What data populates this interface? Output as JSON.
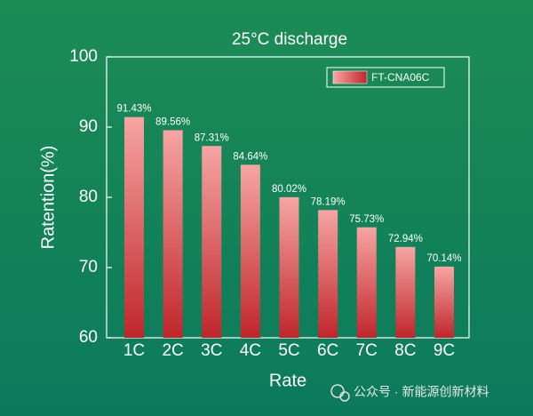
{
  "chart_data": {
    "type": "bar",
    "title": "25°C discharge",
    "xlabel": "Rate",
    "ylabel": "Ratention(%)",
    "categories": [
      "1C",
      "2C",
      "3C",
      "4C",
      "5C",
      "6C",
      "7C",
      "8C",
      "9C"
    ],
    "series": [
      {
        "name": "FT-CNA06C",
        "color": "#c0262b",
        "values": [
          91.43,
          89.56,
          87.31,
          84.64,
          80.02,
          78.19,
          75.73,
          72.94,
          70.14
        ],
        "value_labels": [
          "91.43%",
          "89.56%",
          "87.31%",
          "84.64%",
          "80.02%",
          "78.19%",
          "75.73%",
          "72.94%",
          "70.14%"
        ]
      }
    ],
    "ylim": [
      60,
      100
    ],
    "yticks": [
      60,
      70,
      80,
      90,
      100
    ],
    "legend": "upper right"
  },
  "watermark": "公众号 · 新能源创新材料"
}
